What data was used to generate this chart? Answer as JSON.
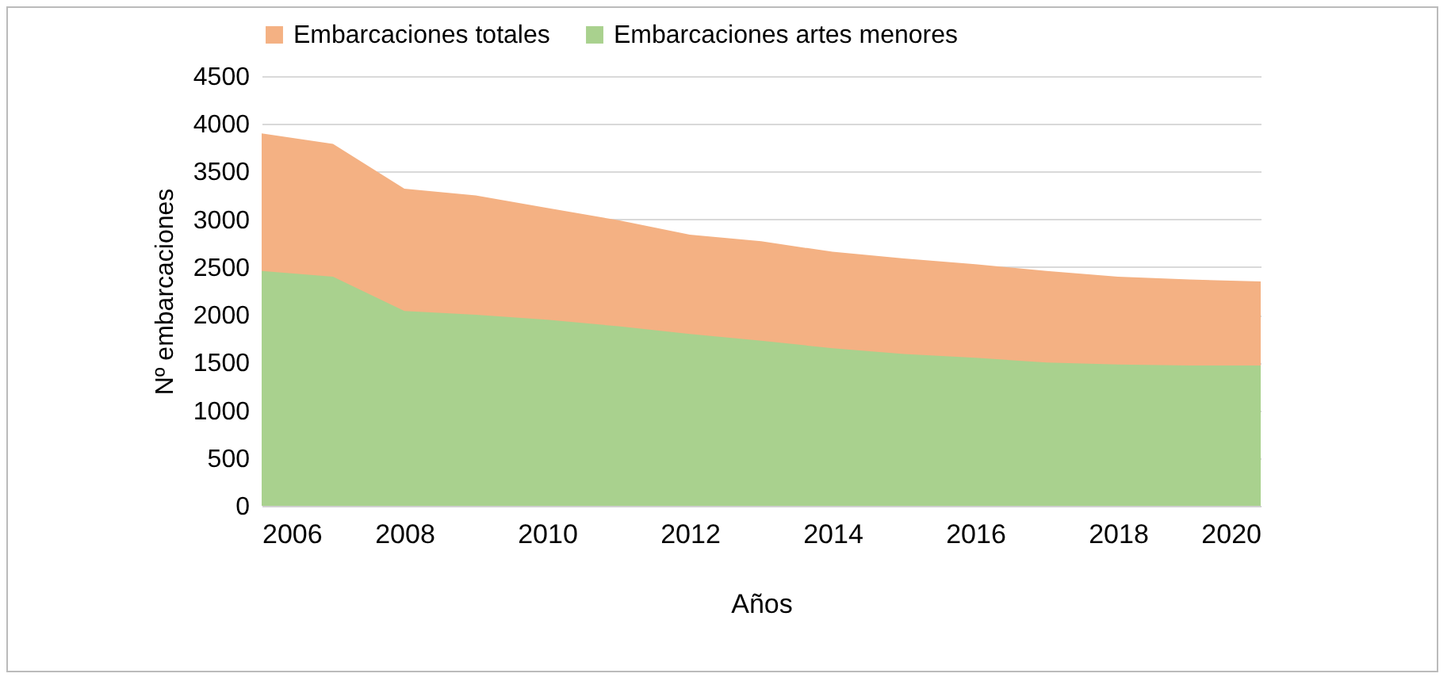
{
  "chart_data": {
    "type": "area",
    "xlabel": "Años",
    "ylabel": "Nº embarcaciones",
    "x": [
      2006,
      2007,
      2008,
      2009,
      2010,
      2011,
      2012,
      2013,
      2014,
      2015,
      2016,
      2017,
      2018,
      2019,
      2020
    ],
    "series": [
      {
        "name": "Embarcaciones totales",
        "color": "#f4b183",
        "values": [
          3900,
          3790,
          3320,
          3250,
          3120,
          2990,
          2840,
          2770,
          2660,
          2590,
          2530,
          2460,
          2400,
          2370,
          2350
        ]
      },
      {
        "name": "Embarcaciones artes menores",
        "color": "#a9d18e",
        "values": [
          2460,
          2400,
          2040,
          2000,
          1950,
          1880,
          1800,
          1730,
          1650,
          1590,
          1550,
          1500,
          1480,
          1470,
          1470
        ]
      }
    ],
    "xlim": [
      2006,
      2020
    ],
    "xticks": [
      2006,
      2008,
      2010,
      2012,
      2014,
      2016,
      2018,
      2020
    ],
    "ylim": [
      0,
      4500
    ],
    "yticks": [
      0,
      500,
      1000,
      1500,
      2000,
      2500,
      3000,
      3500,
      4000,
      4500
    ],
    "grid": "y",
    "legend": "top"
  }
}
